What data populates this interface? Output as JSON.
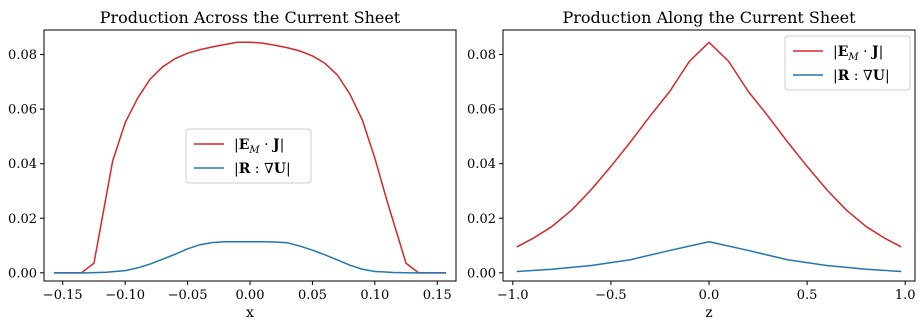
{
  "chart_data": [
    {
      "type": "line",
      "title": "Production Across the Current Sheet",
      "xlabel": "x",
      "ylabel": "",
      "xlim": [
        -0.165,
        0.165
      ],
      "ylim": [
        -0.003,
        0.089
      ],
      "xticks": [
        -0.15,
        -0.1,
        -0.05,
        0.0,
        0.05,
        0.1,
        0.15
      ],
      "xtick_labels": [
        "−0.15",
        "−0.10",
        "−0.05",
        "0.00",
        "0.05",
        "0.10",
        "0.15"
      ],
      "yticks": [
        0.0,
        0.02,
        0.04,
        0.06,
        0.08
      ],
      "ytick_labels": [
        "0.00",
        "0.02",
        "0.04",
        "0.06",
        "0.08"
      ],
      "legend_position": "center-right",
      "grid": false,
      "series": [
        {
          "name": "|E_M · J|",
          "color": "#d62728",
          "x": [
            -0.157,
            -0.135,
            -0.125,
            -0.11,
            -0.1,
            -0.09,
            -0.08,
            -0.07,
            -0.06,
            -0.05,
            -0.04,
            -0.03,
            -0.02,
            -0.01,
            0.0,
            0.01,
            0.02,
            0.03,
            0.04,
            0.05,
            0.06,
            0.07,
            0.08,
            0.09,
            0.1,
            0.11,
            0.125,
            0.135,
            0.157
          ],
          "y": [
            0.0,
            0.0,
            0.0035,
            0.041,
            0.055,
            0.064,
            0.071,
            0.0755,
            0.0785,
            0.0805,
            0.0818,
            0.0828,
            0.0837,
            0.0845,
            0.0845,
            0.0842,
            0.0834,
            0.0825,
            0.0813,
            0.0795,
            0.0768,
            0.0725,
            0.0655,
            0.056,
            0.042,
            0.026,
            0.0035,
            0.0,
            0.0
          ]
        },
        {
          "name": "|R : ∇U|",
          "color": "#1f77b4",
          "x": [
            -0.157,
            -0.13,
            -0.115,
            -0.1,
            -0.09,
            -0.08,
            -0.07,
            -0.06,
            -0.05,
            -0.04,
            -0.03,
            -0.02,
            -0.01,
            0.0,
            0.01,
            0.02,
            0.03,
            0.04,
            0.05,
            0.06,
            0.07,
            0.08,
            0.09,
            0.1,
            0.115,
            0.13,
            0.157
          ],
          "y": [
            0.0,
            0.0,
            0.0002,
            0.0008,
            0.0018,
            0.0032,
            0.005,
            0.0068,
            0.0088,
            0.0103,
            0.0111,
            0.0114,
            0.0114,
            0.0114,
            0.0114,
            0.0113,
            0.011,
            0.0098,
            0.0083,
            0.0066,
            0.0047,
            0.0028,
            0.0013,
            0.0005,
            0.0001,
            0.0,
            0.0
          ]
        }
      ]
    },
    {
      "type": "line",
      "title": "Production Along the Current Sheet",
      "xlabel": "z",
      "ylabel": "",
      "xlim": [
        -1.05,
        1.05
      ],
      "ylim": [
        -0.003,
        0.089
      ],
      "xticks": [
        -1.0,
        -0.5,
        0.0,
        0.5,
        1.0
      ],
      "xtick_labels": [
        "−1.0",
        "−0.5",
        "0.0",
        "0.5",
        "1.0"
      ],
      "yticks": [
        0.0,
        0.02,
        0.04,
        0.06,
        0.08
      ],
      "ytick_labels": [
        "0.00",
        "0.02",
        "0.04",
        "0.06",
        "0.08"
      ],
      "legend_position": "upper-right",
      "grid": false,
      "series": [
        {
          "name": "|E_M · J|",
          "color": "#d62728",
          "x": [
            -0.98,
            -0.9,
            -0.8,
            -0.7,
            -0.6,
            -0.5,
            -0.4,
            -0.3,
            -0.2,
            -0.1,
            0.0,
            0.1,
            0.2,
            0.3,
            0.4,
            0.5,
            0.6,
            0.7,
            0.8,
            0.9,
            0.98
          ],
          "y": [
            0.0095,
            0.0125,
            0.017,
            0.023,
            0.0305,
            0.039,
            0.048,
            0.0575,
            0.0665,
            0.0775,
            0.0845,
            0.0775,
            0.0665,
            0.0575,
            0.048,
            0.039,
            0.0305,
            0.023,
            0.017,
            0.0125,
            0.0095
          ]
        },
        {
          "name": "|R : ∇U|",
          "color": "#1f77b4",
          "x": [
            -0.98,
            -0.8,
            -0.6,
            -0.4,
            -0.2,
            0.0,
            0.2,
            0.4,
            0.6,
            0.8,
            0.98
          ],
          "y": [
            0.0005,
            0.0013,
            0.0027,
            0.0048,
            0.0082,
            0.0114,
            0.0082,
            0.0048,
            0.0027,
            0.0013,
            0.0005
          ]
        }
      ]
    }
  ]
}
